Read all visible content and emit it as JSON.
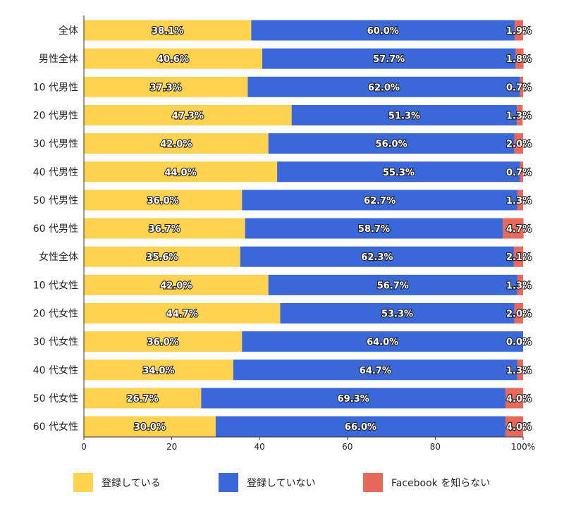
{
  "chart_data": {
    "type": "bar",
    "orientation": "horizontal",
    "stacked": true,
    "categories": [
      "全体",
      "男性全体",
      "10 代男性",
      "20 代男性",
      "30 代男性",
      "40 代男性",
      "50 代男性",
      "60 代男性",
      "女性全体",
      "10 代女性",
      "20 代女性",
      "30 代女性",
      "40 代女性",
      "50 代女性",
      "60 代女性"
    ],
    "series": [
      {
        "name": "登録している",
        "color": "#FFD24F",
        "values": [
          38.1,
          40.6,
          37.3,
          47.3,
          42.0,
          44.0,
          36.0,
          36.7,
          35.6,
          42.0,
          44.7,
          36.0,
          34.0,
          26.7,
          30.0
        ]
      },
      {
        "name": "登録していない",
        "color": "#3A68D8",
        "values": [
          60.0,
          57.7,
          62.0,
          51.3,
          56.0,
          55.3,
          62.7,
          58.7,
          62.3,
          56.7,
          53.3,
          64.0,
          64.7,
          69.3,
          66.0
        ]
      },
      {
        "name": "Facebook を知らない",
        "color": "#E8695C",
        "values": [
          1.9,
          1.8,
          0.7,
          1.3,
          2.0,
          0.7,
          1.3,
          4.7,
          2.1,
          1.3,
          2.0,
          0.0,
          1.3,
          4.0,
          4.0
        ]
      }
    ],
    "labels": [
      [
        "38.1%",
        "40.6%",
        "37.3%",
        "47.3%",
        "42.0%",
        "44.0%",
        "36.0%",
        "36.7%",
        "35.6%",
        "42.0%",
        "44.7%",
        "36.0%",
        "34.0%",
        "26.7%",
        "30.0%"
      ],
      [
        "60.0%",
        "57.7%",
        "62.0%",
        "51.3%",
        "56.0%",
        "55.3%",
        "62.7%",
        "58.7%",
        "62.3%",
        "56.7%",
        "53.3%",
        "64.0%",
        "64.7%",
        "69.3%",
        "66.0%"
      ],
      [
        "1.9%",
        "1.8%",
        "0.7%",
        "1.3%",
        "2.0%",
        "0.7%",
        "1.3%",
        "4.7%",
        "2.1%",
        "1.3%",
        "2.0%",
        "0.0%",
        "1.3%",
        "4.0%",
        "4.0%"
      ]
    ],
    "xlim": [
      0,
      100
    ],
    "xticks": [
      0,
      20,
      40,
      60,
      80,
      100
    ],
    "xtick_labels": [
      "0",
      "20",
      "40",
      "60",
      "80",
      "100%"
    ],
    "legend_position": "bottom"
  }
}
